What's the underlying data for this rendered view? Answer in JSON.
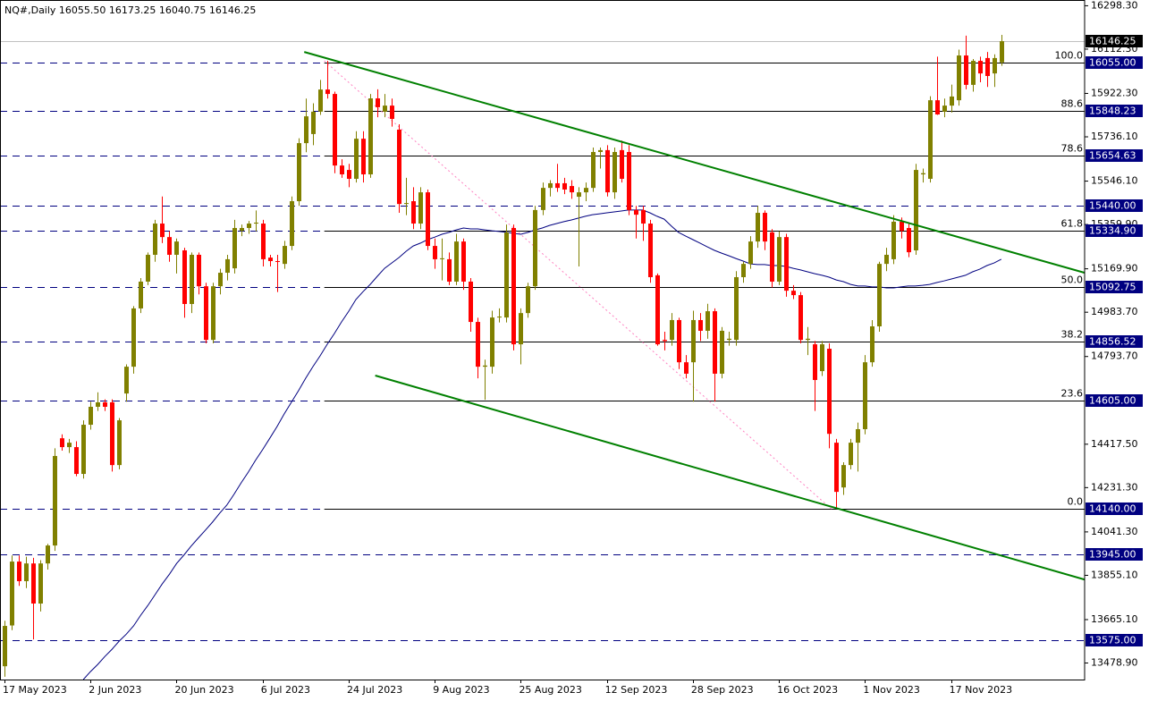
{
  "chart_data": {
    "type": "candlestick",
    "title": "NQ#,Daily  16055.50 16173.25 16040.75 16146.25",
    "up_color": "#808000",
    "down_color": "#ff0000",
    "ylim": [
      13408,
      16323
    ],
    "yticks": [
      {
        "value": 16298.3,
        "label": "16298.30"
      },
      {
        "value": 16112.3,
        "label": "16112.30"
      },
      {
        "value": 15922.3,
        "label": "15922.30"
      },
      {
        "value": 15736.1,
        "label": "15736.10"
      },
      {
        "value": 15546.1,
        "label": "15546.10"
      },
      {
        "value": 15359.9,
        "label": "15359.90"
      },
      {
        "value": 15169.9,
        "label": "15169.90"
      },
      {
        "value": 14983.7,
        "label": "14983.70"
      },
      {
        "value": 14793.7,
        "label": "14793.70"
      },
      {
        "value": 14417.5,
        "label": "14417.50"
      },
      {
        "value": 14231.3,
        "label": "14231.30"
      },
      {
        "value": 14041.3,
        "label": "14041.30"
      },
      {
        "value": 13855.1,
        "label": "13855.10"
      },
      {
        "value": 13665.1,
        "label": "13665.10"
      },
      {
        "value": 13478.9,
        "label": "13478.90"
      }
    ],
    "categories": [
      "17 May 2023",
      null,
      null,
      null,
      null,
      null,
      null,
      null,
      null,
      null,
      null,
      null,
      "2 Jun 2023",
      null,
      null,
      null,
      null,
      null,
      null,
      null,
      null,
      null,
      null,
      null,
      "20 Jun 2023",
      null,
      null,
      null,
      null,
      null,
      null,
      null,
      null,
      null,
      null,
      null,
      "6 Jul 2023",
      null,
      null,
      null,
      null,
      null,
      null,
      null,
      null,
      null,
      null,
      null,
      "24 Jul 2023",
      null,
      null,
      null,
      null,
      null,
      null,
      null,
      null,
      null,
      null,
      null,
      "9 Aug 2023",
      null,
      null,
      null,
      null,
      null,
      null,
      null,
      null,
      null,
      null,
      null,
      "25 Aug 2023",
      null,
      null,
      null,
      null,
      null,
      null,
      null,
      null,
      null,
      null,
      null,
      "12 Sep 2023",
      null,
      null,
      null,
      null,
      null,
      null,
      null,
      null,
      null,
      null,
      null,
      "28 Sep 2023",
      null,
      null,
      null,
      null,
      null,
      null,
      null,
      null,
      null,
      null,
      null,
      "16 Oct 2023",
      null,
      null,
      null,
      null,
      null,
      null,
      null,
      null,
      null,
      null,
      null,
      "1 Nov 2023",
      null,
      null,
      null,
      null,
      null,
      null,
      null,
      null,
      null,
      null,
      null,
      "17 Nov 2023",
      null,
      null,
      null,
      null,
      null,
      null,
      null
    ],
    "candles": [
      [
        13465,
        13660,
        13420,
        13638
      ],
      [
        13640,
        13940,
        13620,
        13914
      ],
      [
        13914,
        13940,
        13810,
        13830
      ],
      [
        13830,
        13935,
        13800,
        13906
      ],
      [
        13906,
        13930,
        13580,
        13734
      ],
      [
        13734,
        13920,
        13700,
        13906
      ],
      [
        13906,
        13990,
        13880,
        13983
      ],
      [
        13983,
        14400,
        13960,
        14367
      ],
      [
        14443,
        14460,
        14390,
        14405
      ],
      [
        14405,
        14440,
        14380,
        14424
      ],
      [
        14405,
        14430,
        14280,
        14290
      ],
      [
        14290,
        14520,
        14270,
        14501
      ],
      [
        14501,
        14600,
        14480,
        14578
      ],
      [
        14578,
        14640,
        14560,
        14597
      ],
      [
        14597,
        14610,
        14560,
        14578
      ],
      [
        14597,
        14610,
        14300,
        14328
      ],
      [
        14328,
        14530,
        14310,
        14520
      ],
      [
        14635,
        14760,
        14600,
        14750
      ],
      [
        14750,
        15010,
        14720,
        15000
      ],
      [
        15000,
        15130,
        14980,
        15115
      ],
      [
        15115,
        15240,
        15100,
        15230
      ],
      [
        15230,
        15380,
        15200,
        15364
      ],
      [
        15364,
        15480,
        15280,
        15306
      ],
      [
        15306,
        15330,
        15200,
        15230
      ],
      [
        15230,
        15300,
        15150,
        15287
      ],
      [
        15249,
        15260,
        14960,
        15019
      ],
      [
        15019,
        15240,
        14980,
        15230
      ],
      [
        15230,
        15240,
        15060,
        15095
      ],
      [
        15095,
        15110,
        14850,
        14865
      ],
      [
        14865,
        15110,
        14850,
        15095
      ],
      [
        15095,
        15170,
        15060,
        15153
      ],
      [
        15153,
        15230,
        15120,
        15211
      ],
      [
        15172,
        15380,
        15150,
        15345
      ],
      [
        15333,
        15360,
        15310,
        15345
      ],
      [
        15345,
        15375,
        15320,
        15364
      ],
      [
        15364,
        15420,
        15330,
        15368
      ],
      [
        15364,
        15380,
        15180,
        15211
      ],
      [
        15218,
        15230,
        15180,
        15203
      ],
      [
        15203,
        15230,
        15070,
        15200
      ],
      [
        15191,
        15290,
        15170,
        15268
      ],
      [
        15268,
        15480,
        15250,
        15460
      ],
      [
        15460,
        15730,
        15440,
        15709
      ],
      [
        15709,
        15900,
        15670,
        15824
      ],
      [
        15748,
        15880,
        15700,
        15844
      ],
      [
        15844,
        15980,
        15830,
        15939
      ],
      [
        15939,
        16062,
        15900,
        15920
      ],
      [
        15920,
        15930,
        15580,
        15613
      ],
      [
        15613,
        15640,
        15560,
        15575
      ],
      [
        15594,
        15620,
        15520,
        15556
      ],
      [
        15556,
        15760,
        15540,
        15728
      ],
      [
        15728,
        15760,
        15540,
        15575
      ],
      [
        15575,
        15920,
        15560,
        15901
      ],
      [
        15901,
        15940,
        15820,
        15863
      ],
      [
        15844,
        15920,
        15820,
        15870
      ],
      [
        15870,
        15900,
        15780,
        15813
      ],
      [
        15767,
        15790,
        15410,
        15448
      ],
      [
        15448,
        15560,
        15400,
        15452
      ],
      [
        15460,
        15520,
        15340,
        15364
      ],
      [
        15364,
        15520,
        15340,
        15498
      ],
      [
        15498,
        15510,
        15250,
        15268
      ],
      [
        15268,
        15300,
        15170,
        15211
      ],
      [
        15211,
        15300,
        15120,
        15215
      ],
      [
        15211,
        15240,
        15100,
        15115
      ],
      [
        15115,
        15320,
        15100,
        15287
      ],
      [
        15287,
        15300,
        15080,
        15115
      ],
      [
        15115,
        15130,
        14900,
        14942
      ],
      [
        14942,
        14960,
        14700,
        14750
      ],
      [
        14750,
        14780,
        14608,
        14755
      ],
      [
        14750,
        14990,
        14720,
        14961
      ],
      [
        14961,
        15000,
        14940,
        14965
      ],
      [
        14961,
        15360,
        14940,
        15326
      ],
      [
        15345,
        15360,
        14820,
        14846
      ],
      [
        14846,
        15000,
        14760,
        14980
      ],
      [
        14980,
        15110,
        14960,
        15095
      ],
      [
        15095,
        15440,
        15080,
        15422
      ],
      [
        15422,
        15540,
        15400,
        15517
      ],
      [
        15517,
        15550,
        15480,
        15537
      ],
      [
        15537,
        15620,
        15500,
        15517
      ],
      [
        15537,
        15560,
        15490,
        15510
      ],
      [
        15525,
        15550,
        15470,
        15498
      ],
      [
        15479,
        15520,
        15180,
        15498
      ],
      [
        15498,
        15540,
        15460,
        15517
      ],
      [
        15517,
        15690,
        15500,
        15671
      ],
      [
        15671,
        15690,
        15600,
        15679
      ],
      [
        15679,
        15700,
        15480,
        15498
      ],
      [
        15498,
        15690,
        15470,
        15671
      ],
      [
        15679,
        15720,
        15540,
        15556
      ],
      [
        15671,
        15700,
        15400,
        15422
      ],
      [
        15422,
        15440,
        15300,
        15402
      ],
      [
        15422,
        15440,
        15290,
        15364
      ],
      [
        15364,
        15380,
        15110,
        15134
      ],
      [
        15142,
        15150,
        14840,
        14846
      ],
      [
        14865,
        14900,
        14820,
        14860
      ],
      [
        14865,
        14980,
        14840,
        14950
      ],
      [
        14950,
        14960,
        14740,
        14769
      ],
      [
        14769,
        14800,
        14700,
        14720
      ],
      [
        14769,
        14990,
        14600,
        14950
      ],
      [
        14950,
        14980,
        14860,
        14904
      ],
      [
        14904,
        15020,
        14870,
        14988
      ],
      [
        14988,
        15000,
        14600,
        14720
      ],
      [
        14720,
        14920,
        14700,
        14904
      ],
      [
        14865,
        14900,
        14840,
        14870
      ],
      [
        14865,
        15160,
        14840,
        15134
      ],
      [
        15134,
        15200,
        15110,
        15191
      ],
      [
        15191,
        15310,
        15170,
        15287
      ],
      [
        15287,
        15440,
        15260,
        15410
      ],
      [
        15410,
        15420,
        15250,
        15287
      ],
      [
        15326,
        15340,
        15090,
        15115
      ],
      [
        15115,
        15330,
        15100,
        15306
      ],
      [
        15306,
        15320,
        15050,
        15076
      ],
      [
        15076,
        15100,
        15040,
        15057
      ],
      [
        15057,
        15070,
        14850,
        14865
      ],
      [
        14865,
        14920,
        14800,
        14870
      ],
      [
        14846,
        14860,
        14560,
        14693
      ],
      [
        14731,
        14860,
        14710,
        14846
      ],
      [
        14827,
        14850,
        14400,
        14462
      ],
      [
        14424,
        14440,
        14140,
        14213
      ],
      [
        14232,
        14340,
        14200,
        14328
      ],
      [
        14328,
        14440,
        14310,
        14424
      ],
      [
        14424,
        14510,
        14300,
        14482
      ],
      [
        14482,
        14800,
        14460,
        14769
      ],
      [
        14769,
        14950,
        14750,
        14923
      ],
      [
        14923,
        15200,
        14900,
        15191
      ],
      [
        15191,
        15260,
        15160,
        15230
      ],
      [
        15211,
        15400,
        15190,
        15372
      ],
      [
        15372,
        15390,
        15300,
        15333
      ],
      [
        15345,
        15370,
        15220,
        15241
      ],
      [
        15249,
        15620,
        15230,
        15594
      ],
      [
        15575,
        15600,
        15540,
        15580
      ],
      [
        15556,
        15910,
        15540,
        15893
      ],
      [
        15893,
        16080,
        15830,
        15832
      ],
      [
        15844,
        15900,
        15820,
        15870
      ],
      [
        15870,
        15960,
        15840,
        15909
      ],
      [
        15893,
        16110,
        15870,
        16085
      ],
      [
        16085,
        16170,
        15940,
        15959
      ],
      [
        15959,
        16070,
        15930,
        16062
      ],
      [
        16062,
        16080,
        15970,
        16008
      ],
      [
        16074,
        16100,
        15950,
        15997
      ],
      [
        16008,
        16090,
        15950,
        16074
      ],
      [
        16055.5,
        16173.25,
        16040.75,
        16146.25
      ]
    ],
    "moving_average": {
      "color": "#000080",
      "values": [
        null,
        null,
        null,
        null,
        null,
        null,
        null,
        null,
        null,
        null,
        null,
        13408,
        13442,
        13473,
        13507,
        13538,
        13573,
        13603,
        13638,
        13684,
        13726,
        13772,
        13818,
        13860,
        13906,
        13941,
        13979,
        14014,
        14048,
        14083,
        14121,
        14156,
        14202,
        14252,
        14298,
        14348,
        14394,
        14443,
        14493,
        14547,
        14597,
        14647,
        14700,
        14750,
        14796,
        14846,
        14892,
        14942,
        14988,
        15038,
        15072,
        15103,
        15138,
        15172,
        15195,
        15218,
        15245,
        15268,
        15280,
        15295,
        15306,
        15318,
        15326,
        15337,
        15345,
        15341,
        15341,
        15337,
        15333,
        15330,
        15326,
        15322,
        15318,
        15326,
        15337,
        15345,
        15356,
        15364,
        15372,
        15379,
        15387,
        15395,
        15402,
        15406,
        15410,
        15414,
        15418,
        15422,
        15422,
        15422,
        15410,
        15395,
        15383,
        15353,
        15326,
        15310,
        15295,
        15280,
        15264,
        15249,
        15237,
        15226,
        15214,
        15203,
        15191,
        15188,
        15188,
        15184,
        15184,
        15180,
        15172,
        15165,
        15157,
        15149,
        15142,
        15134,
        15122,
        15115,
        15103,
        15096,
        15096,
        15092,
        15092,
        15088,
        15088,
        15092,
        15096,
        15096,
        15099,
        15103,
        15111,
        15118,
        15126,
        15134,
        15142,
        15157,
        15168,
        15184,
        15195,
        15211
      ]
    },
    "current_price": {
      "value": 16146.25,
      "label": "16146.25"
    },
    "levels": [
      {
        "value": 16055,
        "label": "16055.00"
      },
      {
        "value": 15848.23,
        "label": "15848.23"
      },
      {
        "value": 15654.63,
        "label": "15654.63"
      },
      {
        "value": 15440,
        "label": "15440.00"
      },
      {
        "value": 15334.9,
        "label": "15334.90"
      },
      {
        "value": 15092.75,
        "label": "15092.75"
      },
      {
        "value": 14856.52,
        "label": "14856.52"
      },
      {
        "value": 14605,
        "label": "14605.00"
      },
      {
        "value": 14140,
        "label": "14140.00"
      },
      {
        "value": 13945,
        "label": "13945.00"
      },
      {
        "value": 13575,
        "label": "13575.00"
      }
    ],
    "fib": {
      "color": "#000000",
      "levels": [
        {
          "value": 16055,
          "label": "100.0"
        },
        {
          "value": 15848.23,
          "label": "88.6"
        },
        {
          "value": 15654.63,
          "label": "78.6"
        },
        {
          "value": 15334.9,
          "label": "61.8"
        },
        {
          "value": 15092.75,
          "label": "50.0"
        },
        {
          "value": 14856.52,
          "label": "38.2"
        },
        {
          "value": 14605,
          "label": "23.6"
        },
        {
          "value": 14140,
          "label": "0.0"
        }
      ]
    },
    "fib_anchor": {
      "color": "#ff80c0",
      "x": [
        44.6,
        115.3
      ],
      "y": [
        16062,
        14140
      ]
    },
    "trendlines": {
      "color": "#008000",
      "lines": [
        {
          "x": [
            41.8,
            150.6
          ],
          "y": [
            16100,
            15153
          ]
        },
        {
          "x": [
            51.7,
            150.6
          ],
          "y": [
            14712,
            13837
          ]
        }
      ]
    }
  }
}
